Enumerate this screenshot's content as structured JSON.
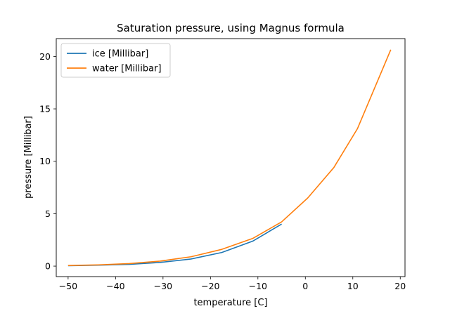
{
  "chart_data": {
    "type": "line",
    "title": "Saturation pressure, using Magnus formula",
    "xlabel": "temperature [C]",
    "ylabel": "pressure [Millibar]",
    "xlim": [
      -52.5,
      21
    ],
    "ylim": [
      -1.0,
      21.7
    ],
    "x_ticks": [
      -50,
      -40,
      -30,
      -20,
      -10,
      0,
      10,
      20
    ],
    "y_ticks": [
      0,
      5,
      10,
      15,
      20
    ],
    "x_tick_labels": [
      "−50",
      "−40",
      "−30",
      "−20",
      "−10",
      "0",
      "10",
      "20"
    ],
    "y_tick_labels": [
      "0",
      "5",
      "10",
      "15",
      "20"
    ],
    "grid": false,
    "legend_position": "top-left",
    "series": [
      {
        "name": "ice [Millibar]",
        "color": "#1f77b4",
        "x": [
          -50,
          -43.6,
          -37.1,
          -30.6,
          -24.1,
          -17.6,
          -11.1,
          -5
        ],
        "y": [
          0.04,
          0.09,
          0.17,
          0.35,
          0.68,
          1.3,
          2.38,
          4.01
        ]
      },
      {
        "name": "water [Millibar]",
        "color": "#ff7f0e",
        "x": [
          -50,
          -43.6,
          -37.1,
          -30.6,
          -24.1,
          -17.6,
          -11.1,
          -5,
          0.5,
          6,
          11,
          18
        ],
        "y": [
          0.06,
          0.12,
          0.24,
          0.48,
          0.89,
          1.6,
          2.64,
          4.22,
          6.5,
          9.4,
          13.13,
          20.64
        ]
      }
    ]
  }
}
